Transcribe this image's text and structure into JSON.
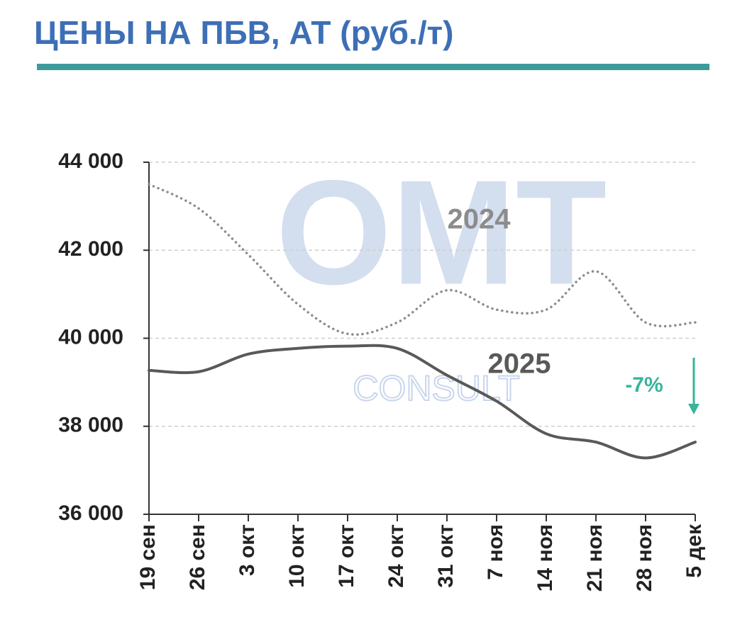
{
  "chart_data": {
    "type": "line",
    "title": "ЦЕНЫ НА ПБВ, АТ (руб./т)",
    "categories": [
      "19 сен",
      "26 сен",
      "3 окт",
      "10 окт",
      "17 окт",
      "24 окт",
      "31 окт",
      "7 ноя",
      "14 ноя",
      "21 ноя",
      "28 ноя",
      "5 дек"
    ],
    "series": [
      {
        "name": "2024",
        "color": "#8c8c8c",
        "style": "dotted",
        "values": [
          43500,
          42950,
          41900,
          40770,
          40100,
          40360,
          41090,
          40650,
          40650,
          41520,
          40360,
          40360
        ]
      },
      {
        "name": "2025",
        "color": "#595959",
        "style": "solid",
        "values": [
          39270,
          39240,
          39640,
          39770,
          39820,
          39770,
          39160,
          38570,
          37830,
          37640,
          37280,
          37640
        ]
      }
    ],
    "ylim": [
      36000,
      44000
    ],
    "yticks": [
      {
        "value": 36000,
        "label": "36 000"
      },
      {
        "value": 38000,
        "label": "38 000"
      },
      {
        "value": 40000,
        "label": "40 000"
      },
      {
        "value": 42000,
        "label": "42 000"
      },
      {
        "value": 44000,
        "label": "44 000"
      }
    ],
    "grid": true,
    "annotation": "-7%",
    "watermark": "OMT",
    "watermark_subtext": "CONSULT"
  }
}
